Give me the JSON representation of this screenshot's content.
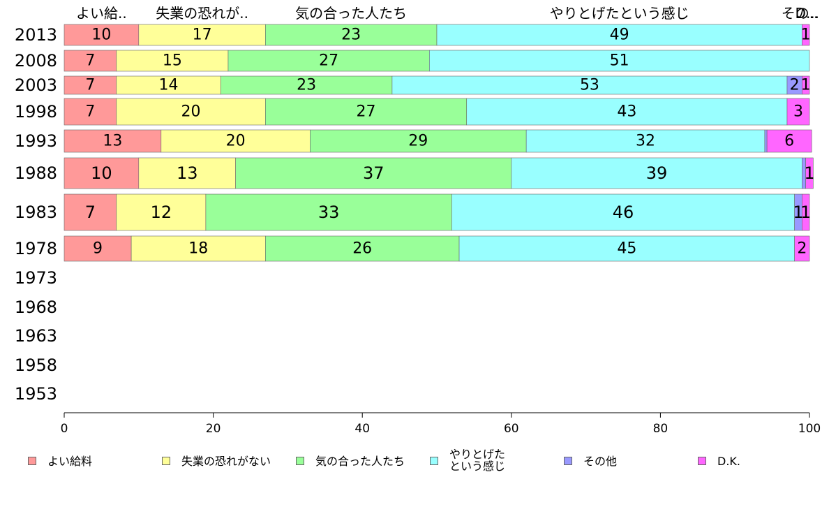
{
  "chart_data": {
    "type": "bar",
    "orientation": "horizontal",
    "stacked": true,
    "title": "",
    "xlabel": "",
    "ylabel": "",
    "xlim": [
      0,
      100
    ],
    "x_ticks": [
      "0",
      "20",
      "40",
      "60",
      "80",
      "100"
    ],
    "categories": [
      "2013",
      "2008",
      "2003",
      "1998",
      "1993",
      "1988",
      "1983",
      "1978",
      "1973",
      "1968",
      "1963",
      "1958",
      "1953"
    ],
    "top_labels": [
      "よい給..",
      "失業の恐れが..",
      "気の合った人たち",
      "やりとげたという感じ",
      "その..",
      "D..."
    ],
    "series": [
      {
        "name": "よい給料",
        "color": "#ff9999",
        "values": [
          10,
          7,
          7,
          7,
          13,
          10,
          7,
          9,
          null,
          null,
          null,
          null,
          null
        ]
      },
      {
        "name": "失業の恐れがない",
        "color": "#ffff99",
        "values": [
          17,
          15,
          14,
          20,
          20,
          13,
          12,
          18,
          null,
          null,
          null,
          null,
          null
        ]
      },
      {
        "name": "気の合った人たち",
        "color": "#99ff99",
        "values": [
          23,
          27,
          23,
          27,
          29,
          37,
          33,
          26,
          null,
          null,
          null,
          null,
          null
        ]
      },
      {
        "name": "やりとげた\nという感じ",
        "color": "#99ffff",
        "values": [
          49,
          51,
          53,
          43,
          32,
          39,
          46,
          45,
          null,
          null,
          null,
          null,
          null
        ]
      },
      {
        "name": "その他",
        "color": "#9999ff",
        "values": [
          0,
          0,
          2,
          0,
          0.3,
          0.5,
          1,
          0,
          null,
          null,
          null,
          null,
          null
        ]
      },
      {
        "name": "D.K.",
        "color": "#ff66ff",
        "values": [
          1,
          0,
          1,
          3,
          6,
          1,
          1,
          2,
          null,
          null,
          null,
          null,
          null
        ]
      }
    ],
    "grid": false,
    "legend_position": "bottom"
  }
}
